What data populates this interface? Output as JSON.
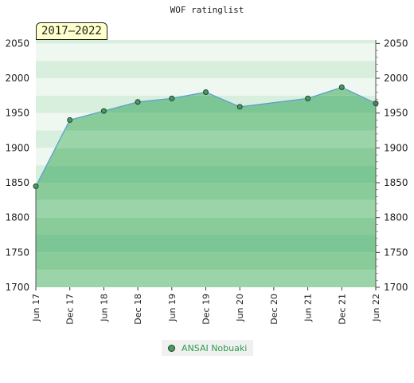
{
  "chart_data": {
    "type": "area",
    "title": "WOF ratinglist",
    "badge": "2017–2022",
    "x_ticks": [
      "Jun 17",
      "Dec 17",
      "Jun 18",
      "Dec 18",
      "Jun 19",
      "Dec 19",
      "Jun 20",
      "Dec 20",
      "Jun 21",
      "Dec 21",
      "Jun 22"
    ],
    "y_ticks": [
      1700,
      1750,
      1800,
      1850,
      1900,
      1950,
      2000,
      2050
    ],
    "ylim": [
      1700,
      2055
    ],
    "series": [
      {
        "name": "ANSAI Nobuaki",
        "points": [
          {
            "x": "Jun 17",
            "y": 1845
          },
          {
            "x": "Dec 17",
            "y": 1940
          },
          {
            "x": "Jun 18",
            "y": 1953
          },
          {
            "x": "Dec 18",
            "y": 1966
          },
          {
            "x": "Jun 19",
            "y": 1971
          },
          {
            "x": "Dec 19",
            "y": 1980
          },
          {
            "x": "Jun 20",
            "y": 1959
          },
          {
            "x": "Jun 21",
            "y": 1971
          },
          {
            "x": "Dec 21",
            "y": 1987
          },
          {
            "x": "Jun 22",
            "y": 1964
          }
        ]
      }
    ],
    "colors": {
      "line": "#5b9bd5",
      "marker": "#3aa45a",
      "area": "#7cc695"
    },
    "grid": true,
    "legend_position": "bottom"
  }
}
